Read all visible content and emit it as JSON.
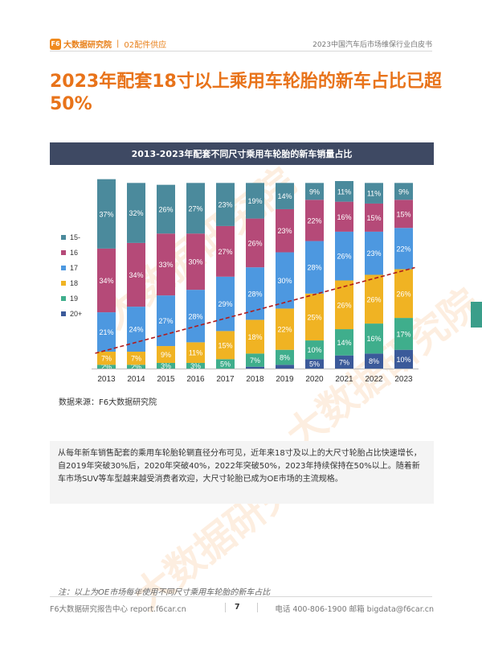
{
  "header": {
    "logo_mark": "F6",
    "brand": "大数据研究院",
    "section": "02配件供应",
    "doc_title": "2023中国汽车后市场维保行业白皮书"
  },
  "page_title": "2023年配套18寸以上乘用车轮胎的新车占比已超50%",
  "chart_title": "2013-2023年配套不同尺寸乘用车轮胎的新车销量占比",
  "source": "数据来源：F6大数据研究院",
  "watermark": "大数据研究院",
  "description": "从每年新车销售配套的乘用车轮胎轮辋直径分布可见，近年来18寸及以上的大尺寸轮胎占比快速增长，自2019年突破30%后，2020年突破40%，2022年突破50%，2023年持续保持在50%以上。随着新车市场SUV等车型越来越受消费者欢迎，大尺寸轮胎已成为OE市场的主流规格。",
  "note": "注：以上为OE市场每年使用不同尺寸乘用车轮胎的新车占比",
  "footer": {
    "left": "F6大数据研究报告中心 report.f6car.cn",
    "page": "7",
    "right": "电话 400-806-1900  邮箱 bigdata@f6car.cn"
  },
  "chart_data": {
    "type": "bar",
    "stacked": true,
    "percent": true,
    "title": "2013-2023年配套不同尺寸乘用车轮胎的新车销量占比",
    "categories": [
      "2013",
      "2014",
      "2015",
      "2016",
      "2017",
      "2018",
      "2019",
      "2020",
      "2021",
      "2022",
      "2023"
    ],
    "series": [
      {
        "name": "20+",
        "color": "#3b5a9a",
        "values": [
          0,
          0,
          0,
          0,
          0,
          1,
          2,
          5,
          7,
          8,
          10
        ],
        "labels": [
          "",
          "",
          "",
          "",
          "",
          "",
          "",
          "5%",
          "7%",
          "8%",
          "10%"
        ]
      },
      {
        "name": "19",
        "color": "#3fae8c",
        "values": [
          2,
          2,
          3,
          3,
          5,
          7,
          8,
          10,
          14,
          16,
          17
        ],
        "labels": [
          "2%",
          "2%",
          "3%",
          "3%",
          "5%",
          "7%",
          "8%",
          "10%",
          "14%",
          "16%",
          "17%"
        ]
      },
      {
        "name": "18",
        "color": "#f0b323",
        "values": [
          7,
          7,
          9,
          11,
          15,
          18,
          22,
          25,
          26,
          26,
          26
        ],
        "labels": [
          "7%",
          "7%",
          "9%",
          "11%",
          "15%",
          "18%",
          "22%",
          "25%",
          "26%",
          "26%",
          "26%"
        ]
      },
      {
        "name": "17",
        "color": "#4d98e0",
        "values": [
          21,
          24,
          27,
          28,
          29,
          28,
          30,
          28,
          26,
          23,
          22
        ],
        "labels": [
          "21%",
          "24%",
          "27%",
          "28%",
          "29%",
          "28%",
          "30%",
          "28%",
          "26%",
          "23%",
          "22%"
        ]
      },
      {
        "name": "16",
        "color": "#b54a78",
        "values": [
          34,
          34,
          33,
          30,
          27,
          26,
          23,
          22,
          16,
          15,
          15
        ],
        "labels": [
          "34%",
          "34%",
          "33%",
          "30%",
          "27%",
          "26%",
          "23%",
          "22%",
          "16%",
          "15%",
          "15%"
        ]
      },
      {
        "name": "15-",
        "color": "#4b8a9c",
        "values": [
          37,
          32,
          26,
          27,
          23,
          19,
          14,
          9,
          11,
          11,
          9
        ],
        "labels": [
          "37%",
          "32%",
          "26%",
          "27%",
          "23%",
          "19%",
          "14%",
          "9%",
          "11%",
          "11%",
          "9%"
        ]
      }
    ],
    "trend_line": {
      "from": [
        "2013",
        9
      ],
      "to": [
        "2023",
        53
      ],
      "color": "#b01c1c",
      "style": "dashed"
    },
    "legend_position": "left",
    "ylim": [
      0,
      100
    ],
    "grid": false
  }
}
